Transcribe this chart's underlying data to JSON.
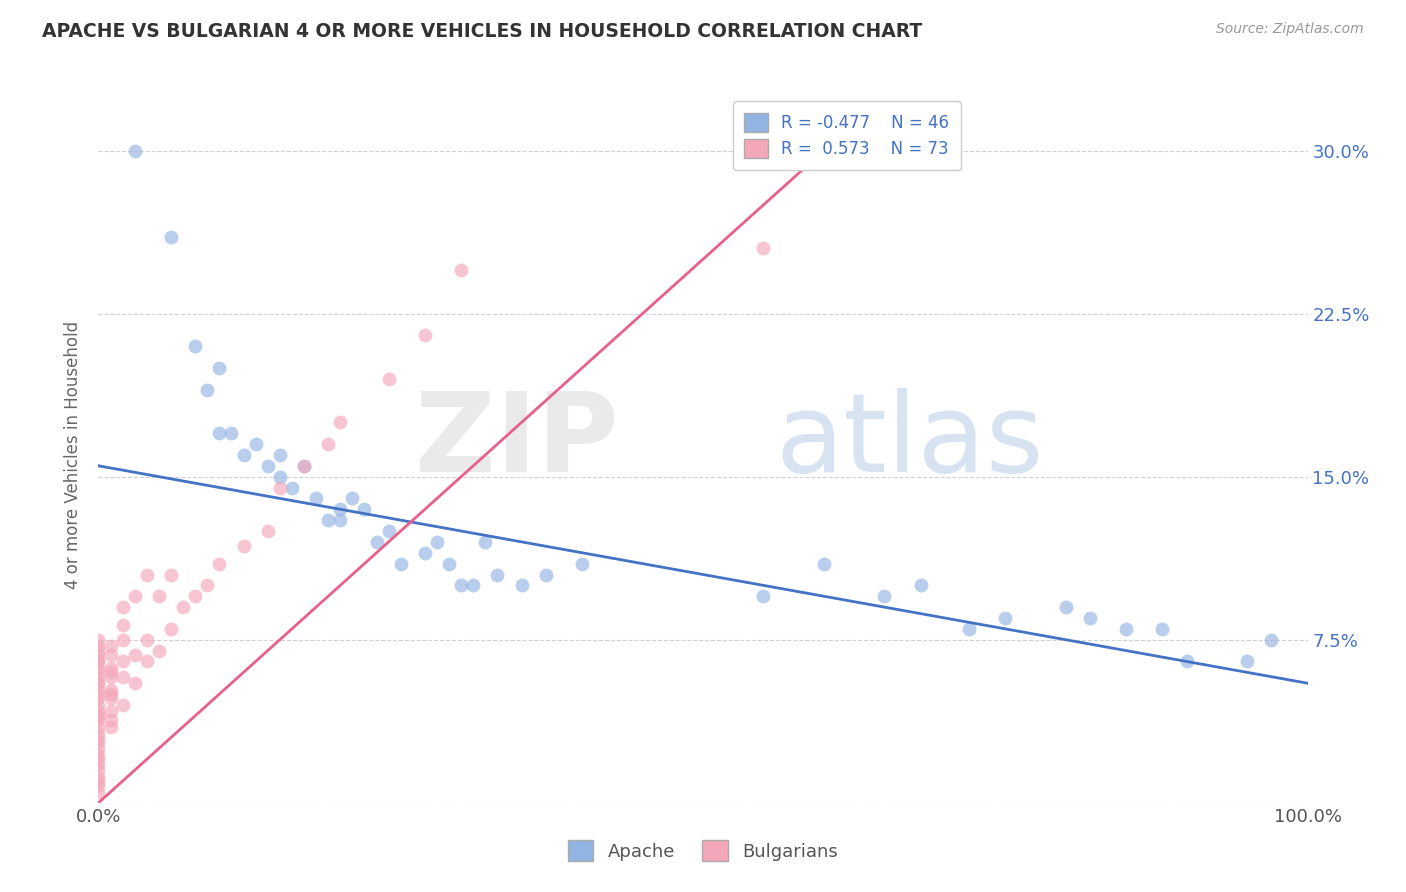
{
  "title": "APACHE VS BULGARIAN 4 OR MORE VEHICLES IN HOUSEHOLD CORRELATION CHART",
  "source": "Source: ZipAtlas.com",
  "ylabel": "4 or more Vehicles in Household",
  "legend_apache": "Apache",
  "legend_bulgarians": "Bulgarians",
  "apache_R": -0.477,
  "apache_N": 46,
  "bulgarian_R": 0.573,
  "bulgarian_N": 73,
  "xlim": [
    0.0,
    1.0
  ],
  "ylim": [
    0.0,
    0.32
  ],
  "yticks": [
    0.0,
    0.075,
    0.15,
    0.225,
    0.3
  ],
  "xtick_labels": [
    "0.0%",
    "100.0%"
  ],
  "right_ytick_labels": [
    "",
    "7.5%",
    "15.0%",
    "22.5%",
    "30.0%"
  ],
  "apache_color": "#92b4e3",
  "bulgarian_color": "#f4a7b9",
  "apache_line_color": "#4472c4",
  "bulgarian_line_color": "#e8608a",
  "apache_x": [
    0.03,
    0.06,
    0.08,
    0.09,
    0.1,
    0.1,
    0.11,
    0.12,
    0.13,
    0.14,
    0.15,
    0.15,
    0.16,
    0.17,
    0.18,
    0.19,
    0.2,
    0.2,
    0.21,
    0.22,
    0.23,
    0.24,
    0.25,
    0.27,
    0.28,
    0.29,
    0.3,
    0.31,
    0.32,
    0.33,
    0.35,
    0.37,
    0.4,
    0.55,
    0.6,
    0.65,
    0.68,
    0.72,
    0.75,
    0.8,
    0.82,
    0.85,
    0.88,
    0.9,
    0.95,
    0.97
  ],
  "apache_y": [
    0.3,
    0.26,
    0.21,
    0.19,
    0.17,
    0.2,
    0.17,
    0.16,
    0.165,
    0.155,
    0.15,
    0.16,
    0.145,
    0.155,
    0.14,
    0.13,
    0.13,
    0.135,
    0.14,
    0.135,
    0.12,
    0.125,
    0.11,
    0.115,
    0.12,
    0.11,
    0.1,
    0.1,
    0.12,
    0.105,
    0.1,
    0.105,
    0.11,
    0.095,
    0.11,
    0.095,
    0.1,
    0.08,
    0.085,
    0.09,
    0.085,
    0.08,
    0.08,
    0.065,
    0.065,
    0.075
  ],
  "bulgarian_x": [
    0.0,
    0.0,
    0.0,
    0.0,
    0.0,
    0.0,
    0.0,
    0.0,
    0.0,
    0.0,
    0.0,
    0.0,
    0.0,
    0.0,
    0.0,
    0.0,
    0.0,
    0.0,
    0.0,
    0.0,
    0.0,
    0.0,
    0.0,
    0.0,
    0.0,
    0.0,
    0.0,
    0.0,
    0.0,
    0.0,
    0.0,
    0.0,
    0.01,
    0.01,
    0.01,
    0.01,
    0.01,
    0.01,
    0.01,
    0.01,
    0.01,
    0.01,
    0.01,
    0.02,
    0.02,
    0.02,
    0.02,
    0.02,
    0.02,
    0.03,
    0.03,
    0.03,
    0.04,
    0.04,
    0.04,
    0.05,
    0.05,
    0.06,
    0.06,
    0.07,
    0.08,
    0.09,
    0.1,
    0.12,
    0.14,
    0.15,
    0.17,
    0.19,
    0.2,
    0.24,
    0.27,
    0.3,
    0.55
  ],
  "bulgarian_y": [
    0.005,
    0.008,
    0.01,
    0.012,
    0.015,
    0.018,
    0.02,
    0.022,
    0.025,
    0.028,
    0.03,
    0.032,
    0.035,
    0.038,
    0.04,
    0.042,
    0.045,
    0.048,
    0.05,
    0.052,
    0.055,
    0.058,
    0.06,
    0.062,
    0.065,
    0.068,
    0.07,
    0.072,
    0.075,
    0.04,
    0.055,
    0.065,
    0.035,
    0.038,
    0.042,
    0.048,
    0.052,
    0.058,
    0.062,
    0.068,
    0.072,
    0.05,
    0.06,
    0.045,
    0.058,
    0.065,
    0.075,
    0.082,
    0.09,
    0.055,
    0.068,
    0.095,
    0.065,
    0.075,
    0.105,
    0.07,
    0.095,
    0.08,
    0.105,
    0.09,
    0.095,
    0.1,
    0.11,
    0.118,
    0.125,
    0.145,
    0.155,
    0.165,
    0.175,
    0.195,
    0.215,
    0.245,
    0.255
  ],
  "apache_trendline_x": [
    0.0,
    1.0
  ],
  "apache_trendline_y": [
    0.155,
    0.055
  ],
  "bulgarian_trendline_x": [
    0.0,
    0.6
  ],
  "bulgarian_trendline_y": [
    0.0,
    0.3
  ]
}
